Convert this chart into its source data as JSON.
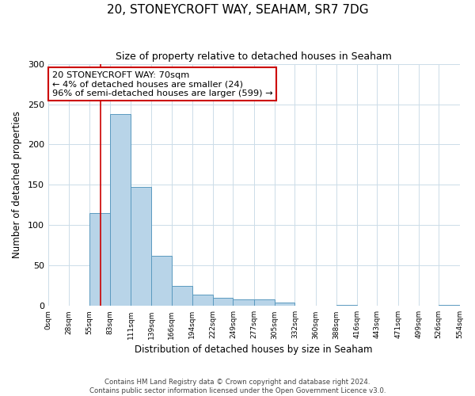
{
  "title": "20, STONEYCROFT WAY, SEAHAM, SR7 7DG",
  "subtitle": "Size of property relative to detached houses in Seaham",
  "xlabel": "Distribution of detached houses by size in Seaham",
  "ylabel": "Number of detached properties",
  "bar_edges": [
    0,
    28,
    55,
    83,
    111,
    139,
    166,
    194,
    222,
    249,
    277,
    305,
    332,
    360,
    388,
    416,
    443,
    471,
    499,
    526,
    554
  ],
  "bar_heights": [
    0,
    0,
    115,
    238,
    147,
    62,
    25,
    14,
    10,
    8,
    8,
    4,
    0,
    0,
    1,
    0,
    0,
    0,
    0,
    1
  ],
  "bar_color": "#b8d4e8",
  "bar_edge_color": "#5a9abf",
  "property_line_x": 70,
  "property_line_color": "#cc0000",
  "annotation_line1": "20 STONEYCROFT WAY: 70sqm",
  "annotation_line2": "← 4% of detached houses are smaller (24)",
  "annotation_line3": "96% of semi-detached houses are larger (599) →",
  "annotation_box_color": "#cc0000",
  "ylim": [
    0,
    300
  ],
  "yticks": [
    0,
    50,
    100,
    150,
    200,
    250,
    300
  ],
  "xtick_labels": [
    "0sqm",
    "28sqm",
    "55sqm",
    "83sqm",
    "111sqm",
    "139sqm",
    "166sqm",
    "194sqm",
    "222sqm",
    "249sqm",
    "277sqm",
    "305sqm",
    "332sqm",
    "360sqm",
    "388sqm",
    "416sqm",
    "443sqm",
    "471sqm",
    "499sqm",
    "526sqm",
    "554sqm"
  ],
  "footer_line1": "Contains HM Land Registry data © Crown copyright and database right 2024.",
  "footer_line2": "Contains public sector information licensed under the Open Government Licence v3.0.",
  "background_color": "#ffffff",
  "grid_color": "#ccdce8"
}
